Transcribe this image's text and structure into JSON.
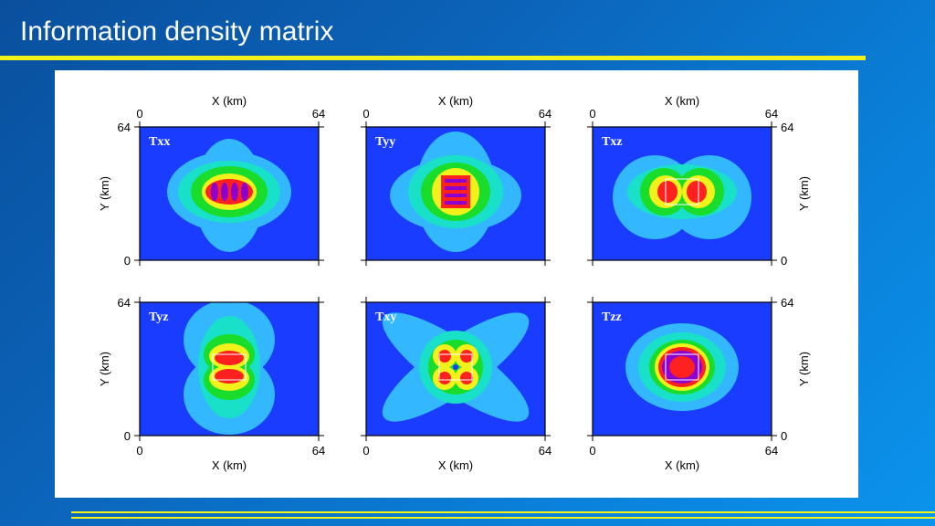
{
  "slide": {
    "title": "Information density matrix"
  },
  "figure": {
    "panels": [
      {
        "label": "Txx"
      },
      {
        "label": "Tyy"
      },
      {
        "label": "Txz"
      },
      {
        "label": "Tyz"
      },
      {
        "label": "Txy"
      },
      {
        "label": "Tzz"
      }
    ],
    "x_axis_label": "X (km)",
    "y_axis_label": "Y (km)",
    "tick_min": "0",
    "tick_max": "64",
    "colormap": [
      "#1a3cff",
      "#33b8ff",
      "#19e0c8",
      "#19dd2a",
      "#f2f21a",
      "#ff2020",
      "#8b00d0"
    ]
  },
  "colors": {
    "background": "#0a63b8",
    "accent_rule": "#f2f21a",
    "panel_background": "#ffffff"
  }
}
